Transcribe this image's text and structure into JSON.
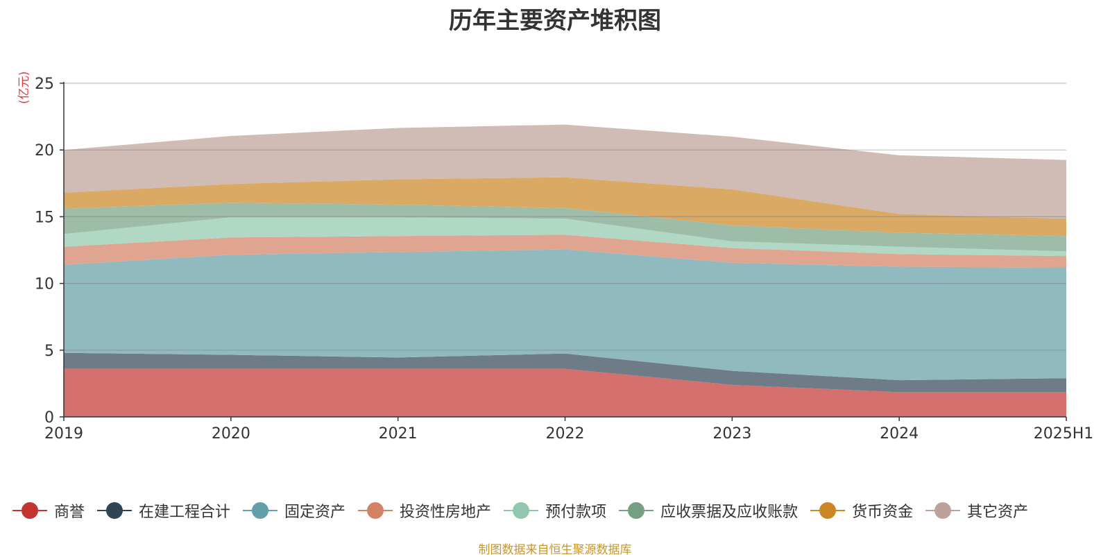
{
  "chart_data": {
    "type": "area",
    "stacked": true,
    "title": "历年主要资产堆积图",
    "unit_label": "(亿元)",
    "source_note": "制图数据来自恒生聚源数据库",
    "categories": [
      "2019",
      "2020",
      "2021",
      "2022",
      "2023",
      "2024",
      "2025H1"
    ],
    "y_ticks": [
      0,
      5,
      10,
      15,
      20,
      25
    ],
    "ylim": [
      0,
      25
    ],
    "grid": true,
    "legend_position": "bottom",
    "series": [
      {
        "name": "商誉",
        "color": "#c23531",
        "fill": "#d4706e",
        "values": [
          3.6,
          3.6,
          3.6,
          3.6,
          2.4,
          1.85,
          1.85
        ]
      },
      {
        "name": "在建工程合计",
        "color": "#2f4554",
        "fill": "#6d7c86",
        "values": [
          1.2,
          1.05,
          0.85,
          1.15,
          1.05,
          0.9,
          1.05
        ]
      },
      {
        "name": "固定资产",
        "color": "#61a0a8",
        "fill": "#91bac0",
        "values": [
          6.6,
          7.5,
          7.9,
          7.8,
          8.1,
          8.5,
          8.3
        ]
      },
      {
        "name": "投资性房地产",
        "color": "#d48265",
        "fill": "#e0a590",
        "values": [
          1.35,
          1.3,
          1.2,
          1.1,
          1.1,
          0.95,
          0.85
        ]
      },
      {
        "name": "预付款项",
        "color": "#91c7ae",
        "fill": "#b1d7c5",
        "values": [
          0.95,
          1.5,
          1.4,
          1.2,
          0.5,
          0.55,
          0.35
        ]
      },
      {
        "name": "应收票据及应收账款",
        "color": "#749f83",
        "fill": "#9ebda9",
        "values": [
          1.9,
          1.1,
          0.95,
          0.8,
          1.2,
          1.05,
          1.15
        ]
      },
      {
        "name": "货币资金",
        "color": "#ca8622",
        "fill": "#daaa64",
        "values": [
          1.2,
          1.4,
          1.9,
          2.3,
          2.7,
          1.4,
          1.3
        ]
      },
      {
        "name": "其它资产",
        "color": "#bda29a",
        "fill": "#d0bbb5",
        "values": [
          3.2,
          3.6,
          3.85,
          3.95,
          3.95,
          4.4,
          4.4
        ]
      }
    ]
  }
}
